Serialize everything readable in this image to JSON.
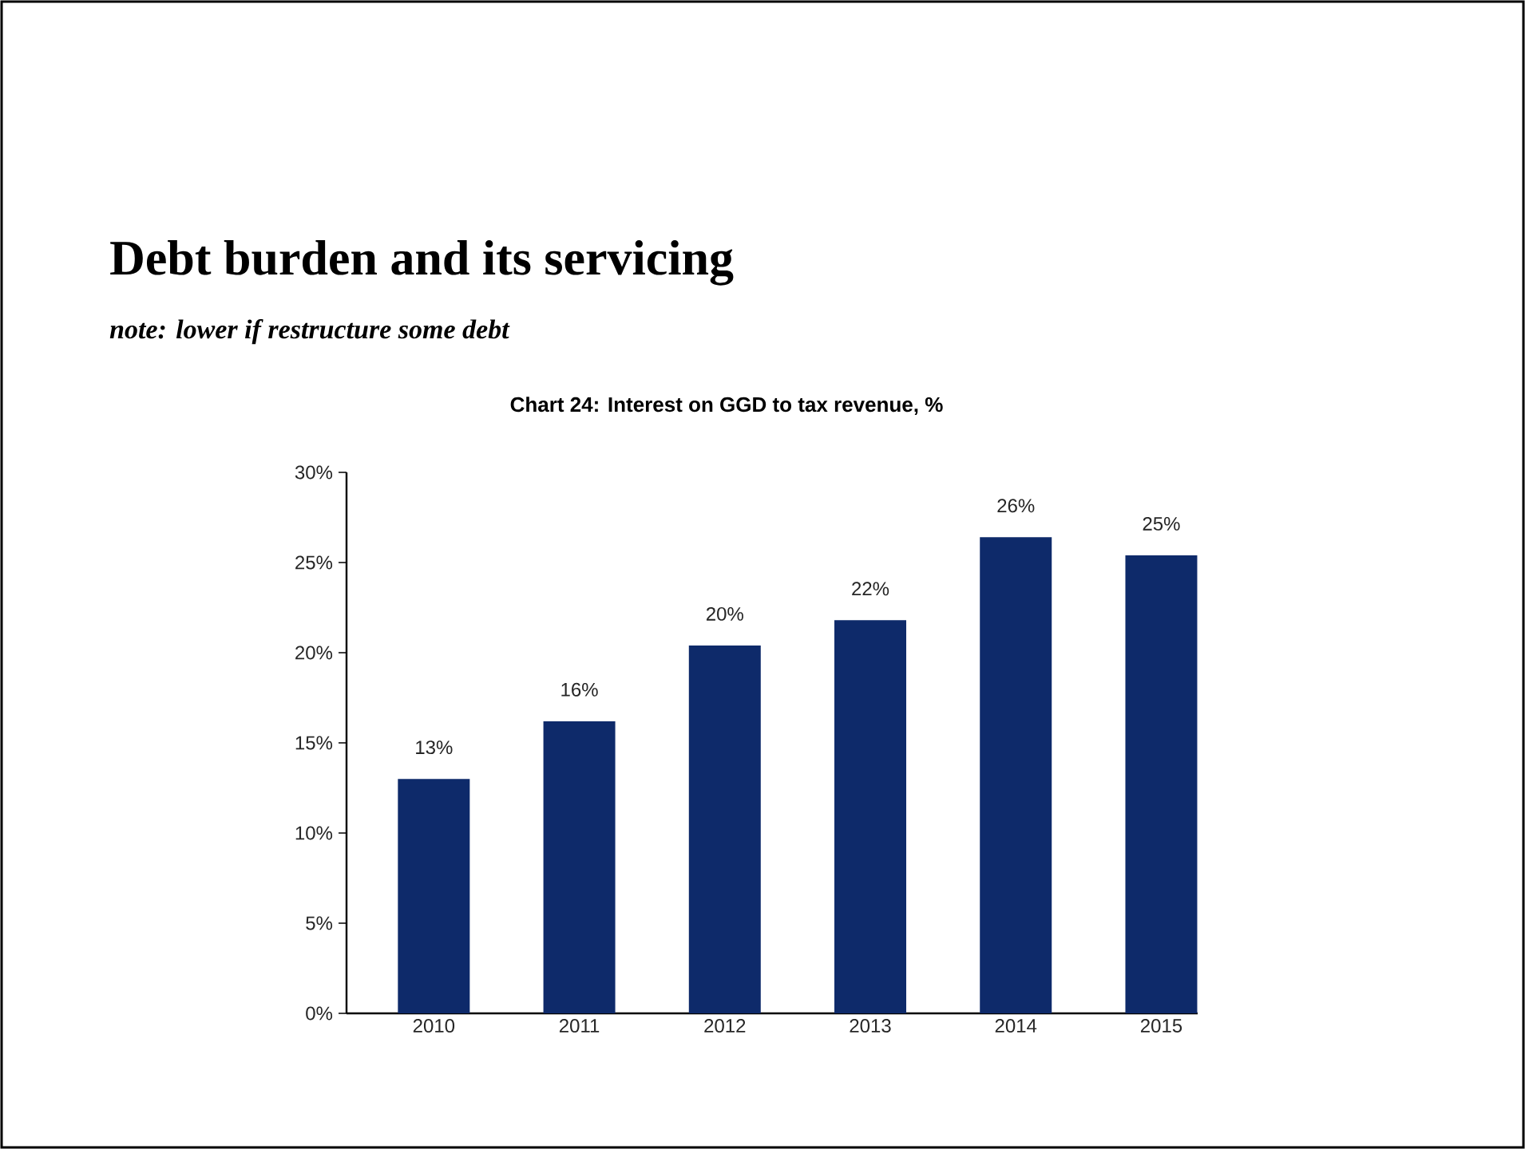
{
  "chart_data": {
    "type": "bar",
    "title": "Debt burden and its servicing",
    "subtitle": "note: lower if restructure some debt",
    "annotations": [
      "Chart 24: Interest on GGD to tax revenue, %"
    ],
    "categories": [
      "2010",
      "2011",
      "2012",
      "2013",
      "2014",
      "2015"
    ],
    "values": [
      13,
      16.2,
      20.4,
      21.8,
      26.4,
      25.4
    ],
    "value_labels": [
      "13%",
      "16%",
      "20%",
      "22%",
      "26%",
      "25%"
    ],
    "color": "#0e2a6a",
    "ylim": [
      0,
      30
    ],
    "yticks": [
      {
        "value": 0,
        "label": "0%"
      },
      {
        "value": 5,
        "label": "5%"
      },
      {
        "value": 10,
        "label": "10%"
      },
      {
        "value": 15,
        "label": "15%"
      },
      {
        "value": 20,
        "label": "20%"
      },
      {
        "value": 25,
        "label": "25%"
      },
      {
        "value": 30,
        "label": "30%"
      }
    ],
    "grid": false
  }
}
